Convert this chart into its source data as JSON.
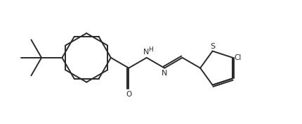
{
  "bg_color": "#ffffff",
  "line_color": "#2a2a2a",
  "line_width": 1.4,
  "fs": 7.5,
  "figsize": [
    4.3,
    1.76
  ],
  "dpi": 100,
  "xlim": [
    0,
    10.5
  ],
  "ylim": [
    0,
    4.1
  ]
}
